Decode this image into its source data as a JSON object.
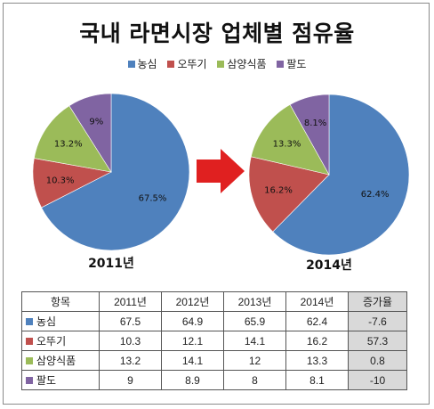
{
  "chart_data": {
    "type": "pie",
    "title": "국내 라면시장 업체별 점유율",
    "legend": [
      "농심",
      "오뚜기",
      "삼양식품",
      "팔도"
    ],
    "colors": [
      "#4f81bd",
      "#c0504d",
      "#9bbb59",
      "#8064a2"
    ],
    "pies": [
      {
        "label": "2011년",
        "values": [
          67.5,
          10.3,
          13.2,
          9
        ],
        "slice_labels": [
          "67.5%",
          "10.3%",
          "13.2%",
          "9%"
        ]
      },
      {
        "label": "2014년",
        "values": [
          62.4,
          16.2,
          13.3,
          8.1
        ],
        "slice_labels": [
          "62.4%",
          "16.2%",
          "13.3%",
          "8.1%"
        ]
      }
    ],
    "table": {
      "headers": [
        "항목",
        "2011년",
        "2012년",
        "2013년",
        "2014년",
        "증가율"
      ],
      "rows": [
        {
          "name": "농심",
          "values": [
            "67.5",
            "64.9",
            "65.9",
            "62.4"
          ],
          "rate": "-7.6"
        },
        {
          "name": "오뚜기",
          "values": [
            "10.3",
            "12.1",
            "14.1",
            "16.2"
          ],
          "rate": "57.3"
        },
        {
          "name": "삼양식품",
          "values": [
            "13.2",
            "14.1",
            "12",
            "13.3"
          ],
          "rate": "0.8"
        },
        {
          "name": "팔도",
          "values": [
            "9",
            "8.9",
            "8",
            "8.1"
          ],
          "rate": "-10"
        }
      ]
    }
  },
  "arrow_color": "#e02020"
}
